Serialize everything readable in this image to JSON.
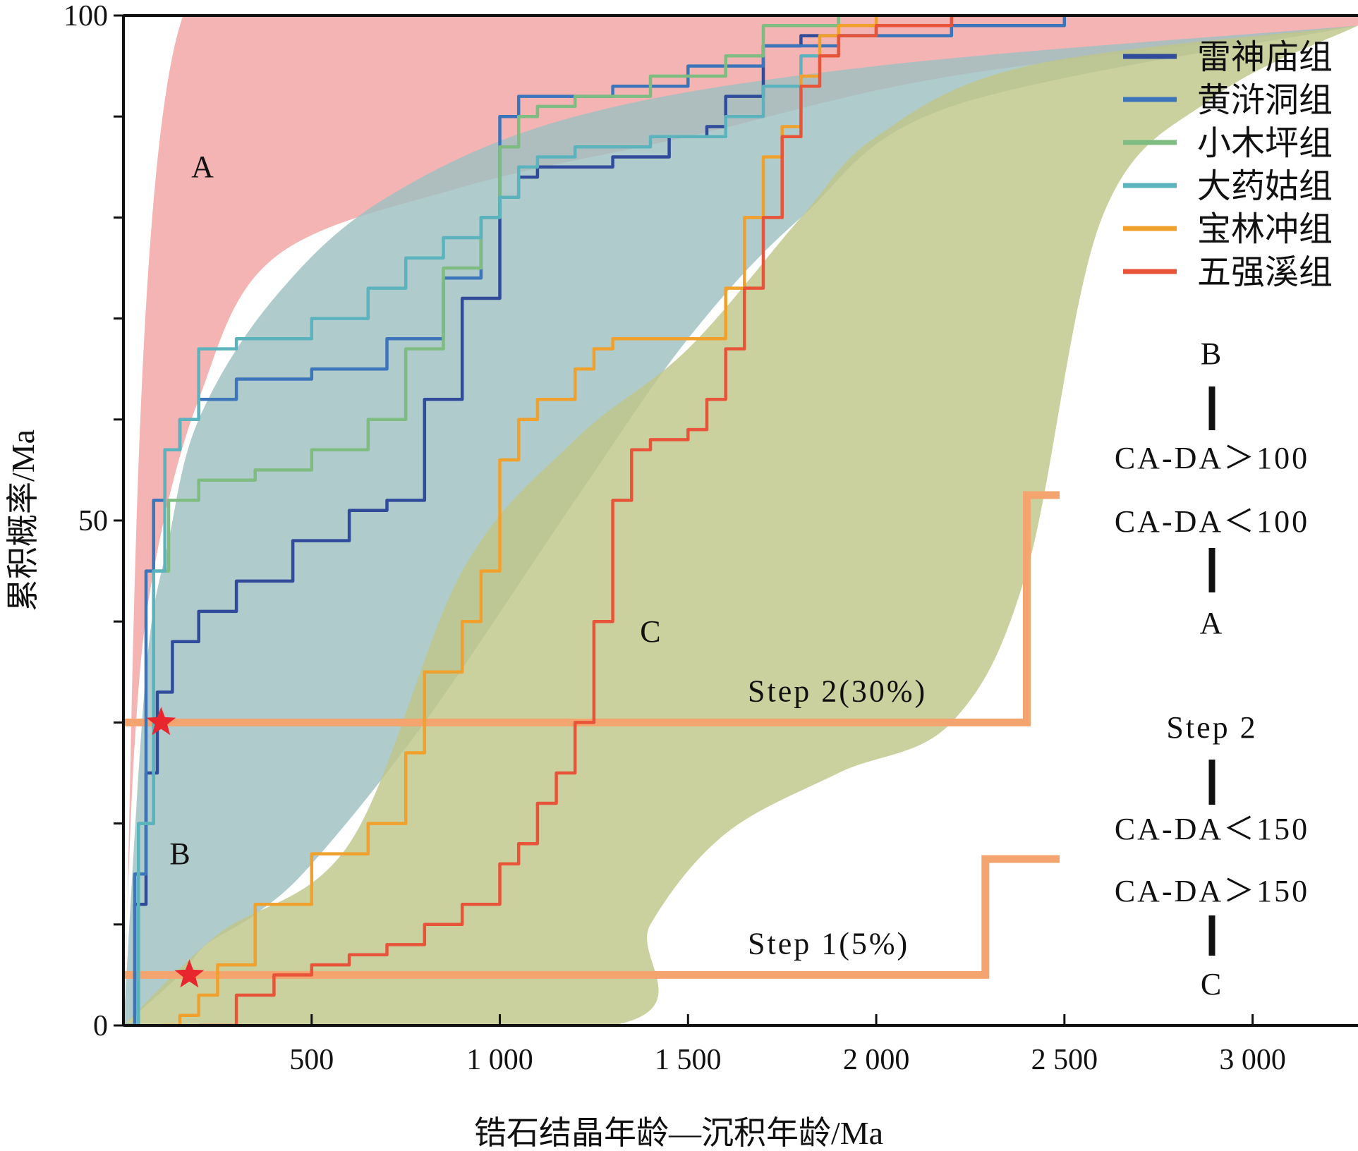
{
  "chart_data": {
    "type": "line",
    "title": "",
    "xlabel": "锆石结晶年龄—沉积年龄/Ma",
    "ylabel": "累积概率/Ma",
    "xlim": [
      0,
      3280
    ],
    "ylim": [
      0,
      100
    ],
    "x_ticks": [
      500,
      1000,
      1500,
      2000,
      2500,
      3000
    ],
    "x_tick_labels": [
      "500",
      "1 000",
      "1 500",
      "2 000",
      "2 500",
      "3 000"
    ],
    "y_ticks": [
      0,
      10,
      20,
      30,
      40,
      50,
      60,
      70,
      80,
      90,
      100
    ],
    "y_tick_labels": [
      {
        "value": 0,
        "text": "0"
      },
      {
        "value": 50,
        "text": "50"
      },
      {
        "value": 100,
        "text": "100"
      }
    ],
    "grid": false,
    "legend_position": "top-right",
    "fields": [
      {
        "name": "A",
        "color": "#f2a3a3",
        "upper": [
          [
            0,
            0
          ],
          [
            150,
            99
          ],
          [
            800,
            100
          ],
          [
            3280,
            100
          ]
        ],
        "lower": [
          [
            0,
            0
          ],
          [
            30,
            28
          ],
          [
            80,
            45
          ],
          [
            200,
            62
          ],
          [
            400,
            76
          ],
          [
            900,
            83
          ],
          [
            1500,
            88
          ],
          [
            2200,
            94
          ],
          [
            3280,
            99
          ],
          [
            3280,
            100
          ]
        ]
      },
      {
        "name": "B",
        "color": "#9fc0c1",
        "upper": [
          [
            0,
            0
          ],
          [
            60,
            35
          ],
          [
            120,
            48
          ],
          [
            200,
            60
          ],
          [
            400,
            72
          ],
          [
            700,
            82
          ],
          [
            1200,
            90
          ],
          [
            2000,
            95
          ],
          [
            3280,
            99
          ]
        ],
        "lower": [
          [
            0,
            0
          ],
          [
            150,
            5
          ],
          [
            220,
            8
          ],
          [
            350,
            11
          ],
          [
            500,
            16
          ],
          [
            800,
            30
          ],
          [
            1200,
            52
          ],
          [
            1500,
            68
          ],
          [
            1800,
            80
          ],
          [
            2200,
            91
          ],
          [
            3280,
            99
          ]
        ]
      },
      {
        "name": "C",
        "color": "#bfc68a",
        "upper": [
          [
            0,
            0
          ],
          [
            250,
            9
          ],
          [
            600,
            18
          ],
          [
            900,
            45
          ],
          [
            1200,
            58
          ],
          [
            1500,
            67
          ],
          [
            1800,
            80
          ],
          [
            2000,
            88
          ],
          [
            2400,
            95
          ],
          [
            3280,
            99
          ]
        ],
        "lower": [
          [
            0,
            0
          ],
          [
            1300,
            0
          ],
          [
            1400,
            10
          ],
          [
            1600,
            19
          ],
          [
            1900,
            25
          ],
          [
            2200,
            30
          ],
          [
            2400,
            45
          ],
          [
            2600,
            80
          ],
          [
            2900,
            92
          ],
          [
            3280,
            99
          ]
        ]
      }
    ],
    "series": [
      {
        "name": "雷神庙组",
        "color": "#2f4b9a",
        "x": [
          0,
          30,
          60,
          90,
          130,
          200,
          300,
          450,
          600,
          700,
          800,
          900,
          1000,
          1050,
          1100,
          1300,
          1450,
          1550,
          1600,
          1700,
          1800,
          2000,
          2300
        ],
        "y": [
          0,
          12,
          25,
          33,
          38,
          41,
          44,
          48,
          51,
          52,
          62,
          72,
          82,
          84,
          85,
          86,
          88,
          89,
          92,
          97,
          98,
          99,
          99
        ]
      },
      {
        "name": "黄浒洞组",
        "color": "#3c75b9",
        "x": [
          0,
          30,
          60,
          80,
          110,
          150,
          200,
          300,
          500,
          700,
          850,
          950,
          1000,
          1050,
          1100,
          1300,
          1500,
          1700,
          1900,
          2200,
          2500
        ],
        "y": [
          0,
          15,
          45,
          52,
          57,
          60,
          62,
          64,
          65,
          68,
          74,
          80,
          90,
          92,
          92,
          93,
          95,
          97,
          98,
          99,
          100
        ]
      },
      {
        "name": "小木坪组",
        "color": "#7fbc82",
        "x": [
          0,
          40,
          80,
          120,
          200,
          350,
          500,
          650,
          750,
          850,
          950,
          1000,
          1050,
          1100,
          1200,
          1400,
          1600,
          1700,
          1800,
          1900
        ],
        "y": [
          0,
          20,
          45,
          52,
          54,
          55,
          57,
          60,
          67,
          75,
          80,
          87,
          90,
          91,
          92,
          94,
          96,
          99,
          99,
          100
        ]
      },
      {
        "name": "大药姑组",
        "color": "#5bb3bd",
        "x": [
          0,
          40,
          80,
          110,
          150,
          200,
          300,
          500,
          650,
          750,
          850,
          950,
          1000,
          1050,
          1100,
          1200,
          1400,
          1600,
          1700,
          1800,
          1900,
          2000,
          2200
        ],
        "y": [
          0,
          20,
          45,
          57,
          60,
          67,
          68,
          70,
          73,
          76,
          78,
          80,
          82,
          85,
          86,
          87,
          88,
          90,
          93,
          96,
          98,
          99,
          100
        ]
      },
      {
        "name": "宝林冲组",
        "color": "#f0a12d",
        "x": [
          100,
          150,
          200,
          250,
          350,
          500,
          650,
          750,
          800,
          900,
          950,
          1000,
          1050,
          1100,
          1200,
          1250,
          1300,
          1400,
          1500,
          1600,
          1650,
          1700,
          1750,
          1800,
          1850,
          1900,
          2000
        ],
        "y": [
          0,
          1,
          3,
          6,
          12,
          17,
          20,
          27,
          35,
          40,
          45,
          56,
          60,
          62,
          65,
          67,
          68,
          68,
          68,
          73,
          80,
          86,
          89,
          94,
          98,
          99,
          100
        ]
      },
      {
        "name": "五强溪组",
        "color": "#e8543a",
        "x": [
          200,
          300,
          400,
          500,
          600,
          700,
          800,
          900,
          1000,
          1050,
          1100,
          1150,
          1200,
          1250,
          1300,
          1350,
          1400,
          1450,
          1500,
          1550,
          1600,
          1650,
          1700,
          1750,
          1800,
          1850,
          1900,
          2000,
          2200,
          2500
        ],
        "y": [
          0,
          3,
          5,
          6,
          7,
          8,
          10,
          12,
          16,
          18,
          22,
          25,
          30,
          40,
          52,
          57,
          58,
          58,
          59,
          62,
          67,
          73,
          80,
          88,
          93,
          96,
          98,
          99,
          100,
          100
        ]
      }
    ],
    "steps": [
      {
        "name": "Step 2",
        "label": "Step 2(30%)",
        "y": 30,
        "x_end": 2400,
        "color": "#f4a46e"
      },
      {
        "name": "Step 1",
        "label": "Step 1(5%)",
        "y": 5,
        "x_end": 2290,
        "color": "#f4a46e"
      }
    ],
    "markers": [
      {
        "name": "star-step2",
        "x": 100,
        "y": 30,
        "color": "#e8262e"
      },
      {
        "name": "star-step1",
        "x": 175,
        "y": 5,
        "color": "#e8262e"
      }
    ],
    "region_labels": [
      {
        "text": "A",
        "x": 210,
        "y": 84
      },
      {
        "text": "B",
        "x": 150,
        "y": 16
      },
      {
        "text": "C",
        "x": 1400,
        "y": 38
      }
    ],
    "annotations": {
      "flow_top": {
        "top": "B",
        "upper_rule": "CA-DA＞100",
        "lower_rule": "CA-DA＜100",
        "bottom": "A"
      },
      "flow_middle_top": "Step 2",
      "flow_bottom": {
        "upper_rule": "CA-DA＜150",
        "lower_rule": "CA-DA＞150",
        "bottom": "C"
      }
    }
  }
}
